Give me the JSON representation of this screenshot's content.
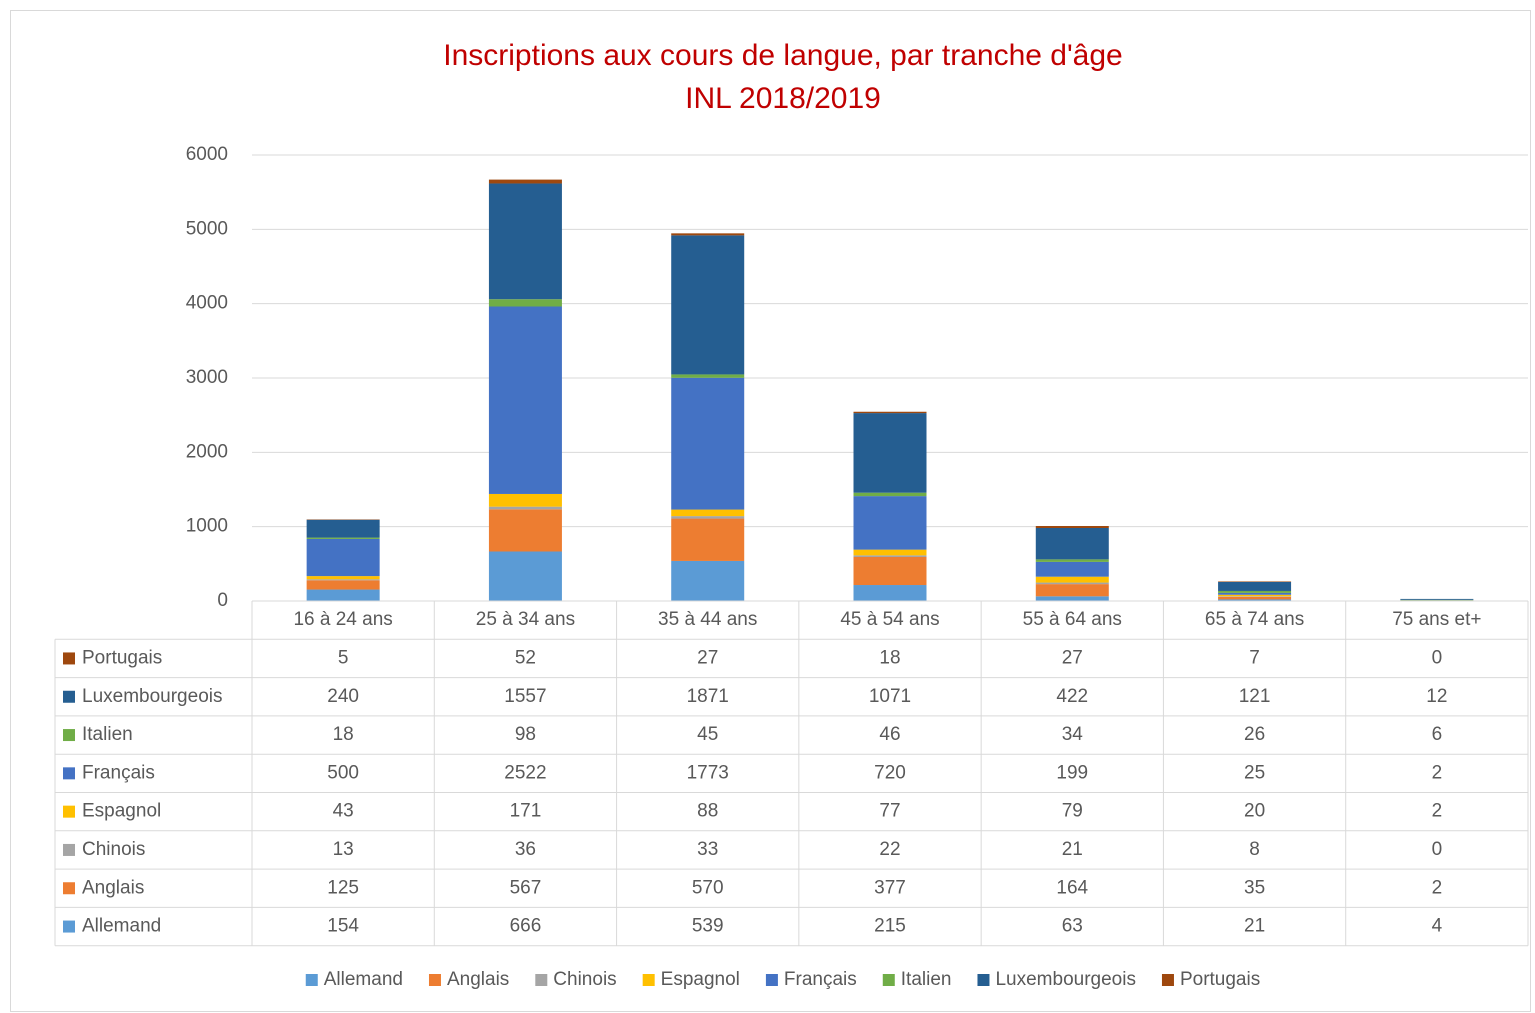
{
  "chart_data": {
    "type": "stacked_bar",
    "title": "Inscriptions aux cours de langue, par tranche d'âge",
    "subtitle": "INL 2018/2019",
    "categories": [
      "16 à 24 ans",
      "25 à 34 ans",
      "35 à 44 ans",
      "45 à 54 ans",
      "55 à 64 ans",
      "65 à 74 ans",
      "75 ans et+"
    ],
    "series": [
      {
        "name": "Allemand",
        "color": "#5b9bd5",
        "values": [
          154,
          666,
          539,
          215,
          63,
          21,
          4
        ]
      },
      {
        "name": "Anglais",
        "color": "#ed7d31",
        "values": [
          125,
          567,
          570,
          377,
          164,
          35,
          2
        ]
      },
      {
        "name": "Chinois",
        "color": "#a5a5a5",
        "values": [
          13,
          36,
          33,
          22,
          21,
          8,
          0
        ]
      },
      {
        "name": "Espagnol",
        "color": "#ffc000",
        "values": [
          43,
          171,
          88,
          77,
          79,
          20,
          2
        ]
      },
      {
        "name": "Français",
        "color": "#4472c4",
        "values": [
          500,
          2522,
          1773,
          720,
          199,
          25,
          2
        ]
      },
      {
        "name": "Italien",
        "color": "#70ad47",
        "values": [
          18,
          98,
          45,
          46,
          34,
          26,
          6
        ]
      },
      {
        "name": "Luxembourgeois",
        "color": "#255e91",
        "values": [
          240,
          1557,
          1871,
          1071,
          422,
          121,
          12
        ]
      },
      {
        "name": "Portugais",
        "color": "#9e480e",
        "values": [
          5,
          52,
          27,
          18,
          27,
          7,
          0
        ]
      }
    ],
    "ylim": [
      0,
      6000
    ],
    "yticks": [
      0,
      1000,
      2000,
      3000,
      4000,
      5000,
      6000
    ],
    "grid": true,
    "legend": "bottom",
    "data_table": true
  }
}
